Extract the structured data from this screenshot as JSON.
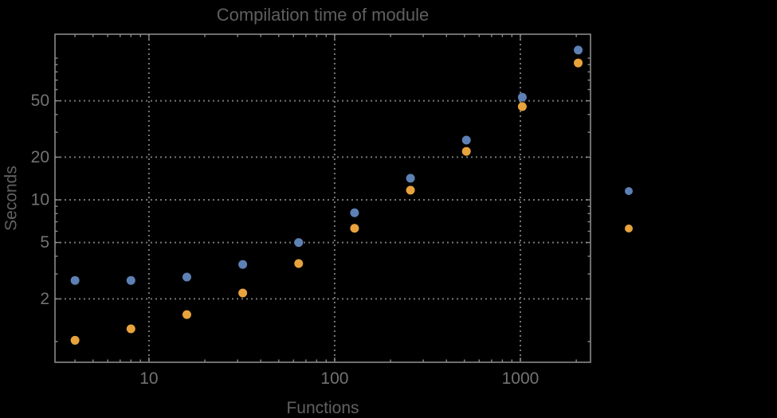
{
  "chart_data": {
    "type": "scatter",
    "title": "Compilation time of module",
    "xlabel": "Functions",
    "ylabel": "Seconds",
    "x_scale": "log",
    "y_scale": "log",
    "x_range": [
      3.12,
      2386
    ],
    "y_range": [
      0.714,
      147.5
    ],
    "grid": {
      "style": "dotted",
      "x_values": [
        10,
        100,
        1000
      ],
      "y_values": [
        2,
        5,
        10,
        20,
        50
      ]
    },
    "x_axis": {
      "major_ticks": [
        10,
        100,
        1000
      ],
      "major_labels": [
        "10",
        "100",
        "1000"
      ],
      "minor_ticks": [
        4,
        5,
        6,
        7,
        8,
        9,
        20,
        30,
        40,
        50,
        60,
        70,
        80,
        90,
        200,
        300,
        400,
        500,
        600,
        700,
        800,
        900,
        2000
      ]
    },
    "y_axis": {
      "major_ticks": [
        2,
        5,
        10,
        20,
        50
      ],
      "major_labels": [
        "2",
        "5",
        "10",
        "20",
        "50"
      ],
      "minor_ticks": [
        1,
        3,
        4,
        6,
        7,
        8,
        9,
        30,
        40,
        60,
        70,
        80,
        90,
        100
      ]
    },
    "x": [
      4,
      8,
      16,
      32,
      64,
      128,
      256,
      512,
      1024,
      2048
    ],
    "series": [
      {
        "name": "blue",
        "color": "#5e81b5",
        "values": [
          2.7,
          2.7,
          2.85,
          3.5,
          5.0,
          8.1,
          14.2,
          26.4,
          53,
          114
        ]
      },
      {
        "name": "orange",
        "color": "#e8a33c",
        "values": [
          1.02,
          1.23,
          1.55,
          2.2,
          3.55,
          6.3,
          11.7,
          22,
          45.5,
          92.5
        ]
      }
    ],
    "legend": {
      "position": "right-of-frame",
      "labels_visible": false,
      "marker_colors": [
        "#5e81b5",
        "#e8a33c"
      ]
    },
    "style": {
      "background": "#000000",
      "frame_color": "#8a8a8a",
      "grid_color": "#757575",
      "title_color": "#5f5f5f",
      "axis_label_color": "#616161",
      "tick_label_color": "#737373",
      "point_radius": 5.5,
      "legend_marker_radius": 5
    }
  }
}
